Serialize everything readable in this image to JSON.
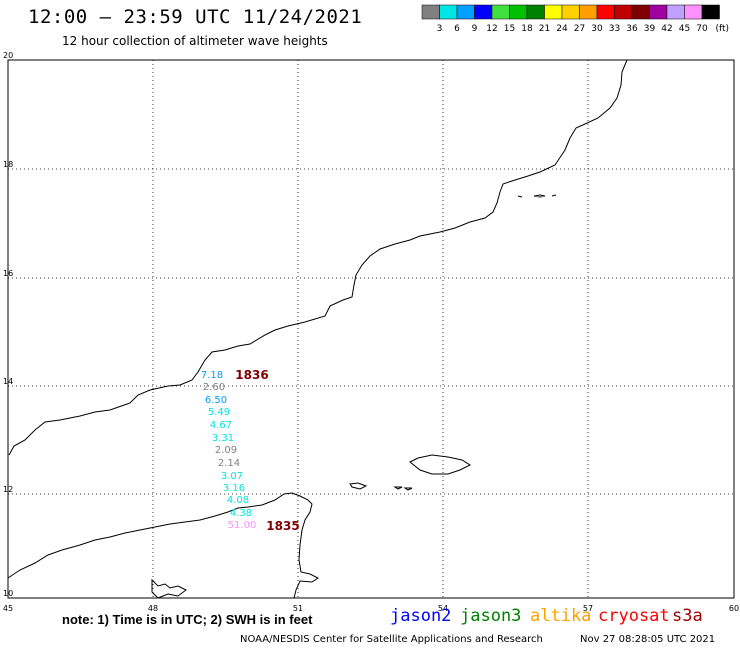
{
  "header": {
    "title": "12:00 – 23:59 UTC 11/24/2021",
    "subtitle": "12 hour collection of altimeter wave heights"
  },
  "color_scale": {
    "colors": [
      "#808080",
      "#00e5e5",
      "#00a0ff",
      "#0000ff",
      "#40e040",
      "#00c000",
      "#008000",
      "#ffff00",
      "#ffd000",
      "#ffa000",
      "#ff0000",
      "#c00000",
      "#800000",
      "#a000a0",
      "#c0a0ff",
      "#ff90ff",
      "#000000"
    ],
    "labels": [
      "3",
      "6",
      "9",
      "12",
      "15",
      "18",
      "21",
      "24",
      "27",
      "30",
      "33",
      "36",
      "39",
      "42",
      "45",
      "70"
    ],
    "unit": "(ft)"
  },
  "axes": {
    "lon_labels": [
      "45",
      "48",
      "51",
      "54",
      "57",
      "60"
    ],
    "lat_labels": [
      "20",
      "18",
      "16",
      "14",
      "12",
      "10"
    ]
  },
  "passes": [
    {
      "label": "1836",
      "color": "#800000"
    },
    {
      "label": "1835",
      "color": "#800000"
    }
  ],
  "wave_heights": [
    {
      "value": "7.18",
      "color": "#00a0ff"
    },
    {
      "value": "2.60",
      "color": "#808080"
    },
    {
      "value": "6.50",
      "color": "#00a0ff"
    },
    {
      "value": "5.49",
      "color": "#00e5e5"
    },
    {
      "value": "4.67",
      "color": "#00e5e5"
    },
    {
      "value": "3.31",
      "color": "#00e5e5"
    },
    {
      "value": "2.09",
      "color": "#808080"
    },
    {
      "value": "2.14",
      "color": "#808080"
    },
    {
      "value": "3.07",
      "color": "#00e5e5"
    },
    {
      "value": "3.16",
      "color": "#00e5e5"
    },
    {
      "value": "4.08",
      "color": "#00e5e5"
    },
    {
      "value": "4.38",
      "color": "#00e5e5"
    },
    {
      "value": "51.00",
      "color": "#ff90ff"
    }
  ],
  "footer": {
    "note": "note: 1) Time is in UTC; 2) SWH is in feet",
    "credit": "NOAA/NESDIS Center for Satellite Applications and Research",
    "timestamp": "Nov 27 08:28:05 UTC 2021"
  },
  "satellites": [
    {
      "name": "jason2",
      "color": "#0000ff"
    },
    {
      "name": "jason3",
      "color": "#008000"
    },
    {
      "name": "altika",
      "color": "#ffa000"
    },
    {
      "name": "cryosat",
      "color": "#ff0000"
    },
    {
      "name": "s3a",
      "color": "#a00000"
    }
  ]
}
